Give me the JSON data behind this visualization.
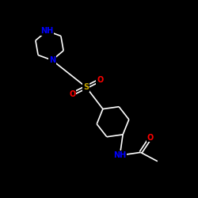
{
  "background_color": "#000000",
  "bond_color": "#ffffff",
  "atom_colors": {
    "N": "#0000ff",
    "S": "#ccaa00",
    "O": "#ff0000",
    "NH": "#0000ff",
    "C": "#ffffff"
  },
  "figsize": [
    2.5,
    2.5
  ],
  "dpi": 100,
  "xlim": [
    0,
    10
  ],
  "ylim": [
    0,
    10
  ]
}
